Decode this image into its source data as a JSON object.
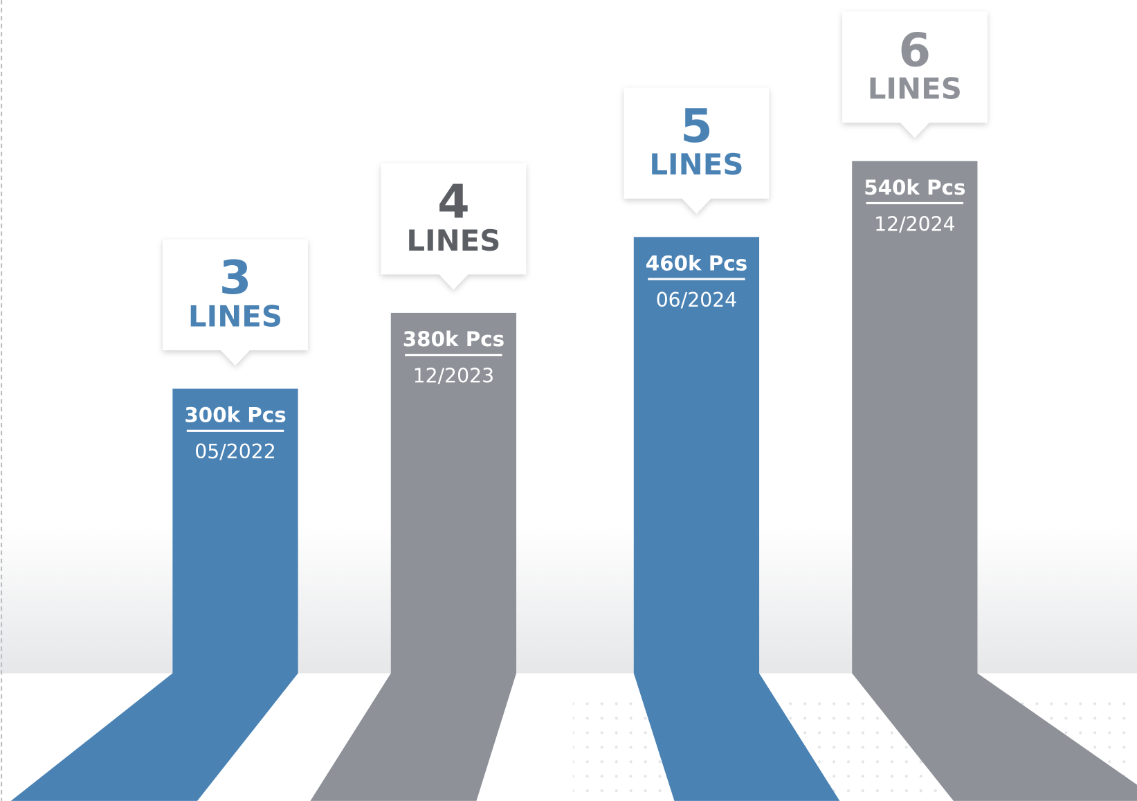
{
  "chart_data": {
    "type": "bar",
    "categories": [
      "05/2022",
      "12/2023",
      "06/2024",
      "12/2024"
    ],
    "values": [
      300000,
      380000,
      460000,
      540000
    ],
    "value_labels": [
      "300k Pcs",
      "380k Pcs",
      "460k Pcs",
      "540k Pcs"
    ],
    "colors": [
      "#4a82b4",
      "#8e9298",
      "#4a82b4",
      "#8e9298"
    ],
    "lines": {
      "name": "LINES",
      "values": [
        3,
        4,
        5,
        6
      ],
      "colors": [
        "#4a82b4",
        "#5b5f64",
        "#4a82b4",
        "#8e9298"
      ]
    }
  }
}
